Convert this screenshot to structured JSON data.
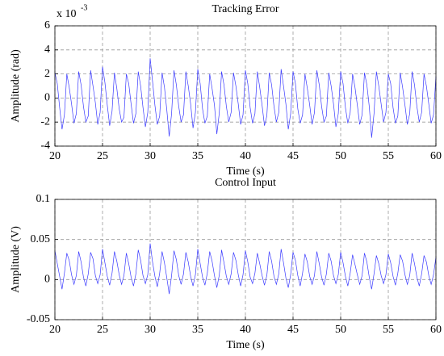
{
  "chart_data": [
    {
      "type": "line",
      "title": "Tracking Error",
      "xlabel": "Time (s)",
      "ylabel": "Amplitude (rad)",
      "annotation": {
        "text": "x 10",
        "exponent": "-3"
      },
      "xlim": [
        20,
        60
      ],
      "xticks": [
        20,
        25,
        30,
        35,
        40,
        45,
        50,
        55,
        60
      ],
      "ylim": [
        -4,
        6
      ],
      "yticks": [
        -4,
        -2,
        0,
        2,
        4,
        6
      ],
      "grid": true,
      "color": "#3a3aff",
      "x": [
        20,
        20.25,
        20.5,
        20.75,
        21,
        21.25,
        21.5,
        21.75,
        22,
        22.25,
        22.5,
        22.75,
        23,
        23.25,
        23.5,
        23.75,
        24,
        24.25,
        24.5,
        24.75,
        25,
        25.25,
        25.5,
        25.75,
        26,
        26.25,
        26.5,
        26.75,
        27,
        27.25,
        27.5,
        27.75,
        28,
        28.25,
        28.5,
        28.75,
        29,
        29.25,
        29.5,
        29.75,
        30,
        30.25,
        30.5,
        30.75,
        31,
        31.25,
        31.5,
        31.75,
        32,
        32.25,
        32.5,
        32.75,
        33,
        33.25,
        33.5,
        33.75,
        34,
        34.25,
        34.5,
        34.75,
        35,
        35.25,
        35.5,
        35.75,
        36,
        36.25,
        36.5,
        36.75,
        37,
        37.25,
        37.5,
        37.75,
        38,
        38.25,
        38.5,
        38.75,
        39,
        39.25,
        39.5,
        39.75,
        40,
        40.25,
        40.5,
        40.75,
        41,
        41.25,
        41.5,
        41.75,
        42,
        42.25,
        42.5,
        42.75,
        43,
        43.25,
        43.5,
        43.75,
        44,
        44.25,
        44.5,
        44.75,
        45,
        45.25,
        45.5,
        45.75,
        46,
        46.25,
        46.5,
        46.75,
        47,
        47.25,
        47.5,
        47.75,
        48,
        48.25,
        48.5,
        48.75,
        49,
        49.25,
        49.5,
        49.75,
        50,
        50.25,
        50.5,
        50.75,
        51,
        51.25,
        51.5,
        51.75,
        52,
        52.25,
        52.5,
        52.75,
        53,
        53.25,
        53.5,
        53.75,
        54,
        54.25,
        54.5,
        54.75,
        55,
        55.25,
        55.5,
        55.75,
        56,
        56.25,
        56.5,
        56.75,
        57,
        57.25,
        57.5,
        57.75,
        58,
        58.25,
        58.5,
        58.75,
        59,
        59.25,
        59.5,
        59.75,
        60
      ],
      "values": [
        2.1,
        1.2,
        -0.8,
        -2.6,
        -1.4,
        2.0,
        0.9,
        -0.5,
        -2.1,
        -1.3,
        2.2,
        1.1,
        -0.7,
        -2.0,
        -1.5,
        2.3,
        1.0,
        -0.4,
        -2.2,
        -1.2,
        2.6,
        1.3,
        -0.6,
        -2.3,
        -1.1,
        2.1,
        0.8,
        -0.9,
        -2.0,
        -1.6,
        2.0,
        1.2,
        -0.5,
        -2.1,
        -1.3,
        2.2,
        1.0,
        -0.8,
        -2.4,
        -1.2,
        3.3,
        1.4,
        -0.6,
        -2.2,
        -1.5,
        2.1,
        0.9,
        -1.0,
        -3.2,
        -1.3,
        2.3,
        1.1,
        -0.7,
        -2.0,
        -1.4,
        2.2,
        1.0,
        -0.5,
        -2.5,
        -1.2,
        2.4,
        1.2,
        -0.9,
        -2.1,
        -1.5,
        2.0,
        0.8,
        -0.6,
        -3.0,
        -1.3,
        2.2,
        1.1,
        -0.7,
        -2.0,
        -1.2,
        2.1,
        1.0,
        -0.5,
        -2.2,
        -1.4,
        2.3,
        1.2,
        -0.8,
        -2.1,
        -1.3,
        2.2,
        0.9,
        -0.6,
        -2.3,
        -1.5,
        2.1,
        1.1,
        -0.7,
        -2.0,
        -1.2,
        2.4,
        1.0,
        -0.5,
        -2.6,
        -1.3,
        2.2,
        1.2,
        -0.9,
        -2.1,
        -1.4,
        2.0,
        0.8,
        -0.6,
        -2.2,
        -1.2,
        2.3,
        1.1,
        -0.7,
        -2.0,
        -1.5,
        2.1,
        1.0,
        -0.5,
        -2.4,
        -1.3,
        2.2,
        1.2,
        -0.8,
        -2.1,
        -1.2,
        2.0,
        0.9,
        -0.6,
        -2.2,
        -1.4,
        2.1,
        1.1,
        -0.7,
        -3.3,
        -1.3,
        2.2,
        1.0,
        -0.5,
        -2.0,
        -1.2,
        2.0,
        1.2,
        -0.8,
        -2.1,
        -1.5,
        2.1,
        0.9,
        -0.6,
        -2.2,
        -1.3,
        2.2,
        1.1,
        -0.7,
        -2.0,
        -1.2,
        2.0,
        1.0,
        -0.5,
        -2.1,
        -1.4,
        1.8
      ]
    },
    {
      "type": "line",
      "title": "Control Input",
      "xlabel": "Time (s)",
      "ylabel": "Amplitude (V)",
      "xlim": [
        20,
        60
      ],
      "xticks": [
        20,
        25,
        30,
        35,
        40,
        45,
        50,
        55,
        60
      ],
      "ylim": [
        -0.05,
        0.1
      ],
      "yticks": [
        -0.05,
        0,
        0.05,
        0.1
      ],
      "grid": true,
      "color": "#3a3aff",
      "x": [
        20,
        20.25,
        20.5,
        20.75,
        21,
        21.25,
        21.5,
        21.75,
        22,
        22.25,
        22.5,
        22.75,
        23,
        23.25,
        23.5,
        23.75,
        24,
        24.25,
        24.5,
        24.75,
        25,
        25.25,
        25.5,
        25.75,
        26,
        26.25,
        26.5,
        26.75,
        27,
        27.25,
        27.5,
        27.75,
        28,
        28.25,
        28.5,
        28.75,
        29,
        29.25,
        29.5,
        29.75,
        30,
        30.25,
        30.5,
        30.75,
        31,
        31.25,
        31.5,
        31.75,
        32,
        32.25,
        32.5,
        32.75,
        33,
        33.25,
        33.5,
        33.75,
        34,
        34.25,
        34.5,
        34.75,
        35,
        35.25,
        35.5,
        35.75,
        36,
        36.25,
        36.5,
        36.75,
        37,
        37.25,
        37.5,
        37.75,
        38,
        38.25,
        38.5,
        38.75,
        39,
        39.25,
        39.5,
        39.75,
        40,
        40.25,
        40.5,
        40.75,
        41,
        41.25,
        41.5,
        41.75,
        42,
        42.25,
        42.5,
        42.75,
        43,
        43.25,
        43.5,
        43.75,
        44,
        44.25,
        44.5,
        44.75,
        45,
        45.25,
        45.5,
        45.75,
        46,
        46.25,
        46.5,
        46.75,
        47,
        47.25,
        47.5,
        47.75,
        48,
        48.25,
        48.5,
        48.75,
        49,
        49.25,
        49.5,
        49.75,
        50,
        50.25,
        50.5,
        50.75,
        51,
        51.25,
        51.5,
        51.75,
        52,
        52.25,
        52.5,
        52.75,
        53,
        53.25,
        53.5,
        53.75,
        54,
        54.25,
        54.5,
        54.75,
        55,
        55.25,
        55.5,
        55.75,
        56,
        56.25,
        56.5,
        56.75,
        57,
        57.25,
        57.5,
        57.75,
        58,
        58.25,
        58.5,
        58.75,
        59,
        59.25,
        59.5,
        59.75,
        60
      ],
      "values": [
        0.036,
        0.02,
        0.004,
        -0.012,
        0.008,
        0.033,
        0.024,
        0.006,
        -0.006,
        0.005,
        0.035,
        0.022,
        0.003,
        -0.008,
        0.007,
        0.034,
        0.026,
        0.005,
        -0.005,
        0.006,
        0.038,
        0.021,
        0.004,
        -0.007,
        0.008,
        0.035,
        0.023,
        0.006,
        -0.006,
        0.005,
        0.033,
        0.02,
        0.003,
        -0.008,
        0.007,
        0.037,
        0.024,
        0.005,
        -0.005,
        0.006,
        0.045,
        0.022,
        0.004,
        -0.009,
        0.008,
        0.035,
        0.021,
        0.002,
        -0.018,
        0.005,
        0.036,
        0.025,
        0.005,
        -0.006,
        0.007,
        0.034,
        0.022,
        0.004,
        -0.008,
        0.006,
        0.038,
        0.02,
        0.003,
        -0.007,
        0.008,
        0.035,
        0.023,
        0.005,
        -0.01,
        0.005,
        0.037,
        0.021,
        0.004,
        -0.006,
        0.007,
        0.034,
        0.024,
        0.006,
        -0.008,
        0.006,
        0.036,
        0.022,
        0.003,
        -0.005,
        0.008,
        0.033,
        0.02,
        0.005,
        -0.007,
        0.005,
        0.035,
        0.023,
        0.004,
        -0.006,
        0.007,
        0.038,
        0.021,
        0.002,
        -0.01,
        0.006,
        0.034,
        0.024,
        0.005,
        -0.008,
        0.008,
        0.032,
        0.022,
        0.004,
        -0.006,
        0.005,
        0.035,
        0.02,
        0.003,
        -0.007,
        0.007,
        0.033,
        0.023,
        0.005,
        -0.005,
        0.006,
        0.034,
        0.021,
        0.004,
        -0.008,
        0.008,
        0.031,
        0.019,
        0.006,
        -0.006,
        0.005,
        0.033,
        0.022,
        0.003,
        -0.012,
        0.007,
        0.03,
        0.02,
        0.005,
        -0.005,
        0.006,
        0.032,
        0.021,
        0.004,
        -0.007,
        0.008,
        0.031,
        0.023,
        0.006,
        -0.006,
        0.005,
        0.033,
        0.02,
        0.003,
        -0.008,
        0.007,
        0.03,
        0.022,
        0.005,
        -0.006,
        0.006,
        0.028
      ]
    }
  ]
}
